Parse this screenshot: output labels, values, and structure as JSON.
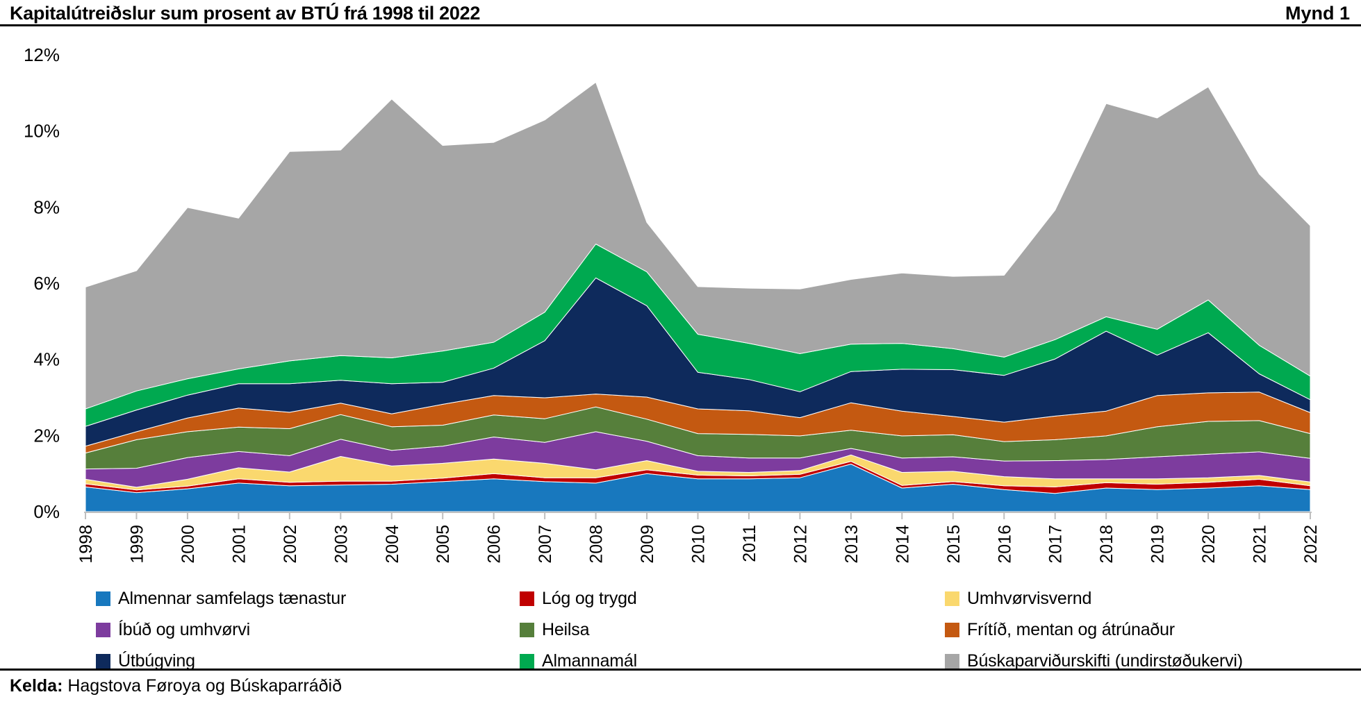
{
  "header": {
    "title": "Kapitalútreiðslur sum prosent av BTÚ frá 1998 til 2022",
    "figure_label": "Mynd 1"
  },
  "source": {
    "label": "Kelda:",
    "text": " Hagstova Føroya og Búskaparráðið"
  },
  "axis_colors": {
    "line": "#BFBFBF",
    "text": "#000000"
  },
  "chart_data": {
    "type": "area",
    "stacked": true,
    "title": "Kapitalútreiðslur sum prosent av BTÚ frá 1998 til 2022",
    "xlabel": "",
    "ylabel": "",
    "ylim": [
      0,
      12
    ],
    "yticks": [
      0,
      2,
      4,
      6,
      8,
      10,
      12
    ],
    "ytick_labels": [
      "0%",
      "2%",
      "4%",
      "6%",
      "8%",
      "10%",
      "12%"
    ],
    "grid": false,
    "legend_position": "bottom",
    "x": [
      1998,
      1999,
      2000,
      2001,
      2002,
      2003,
      2004,
      2005,
      2006,
      2007,
      2008,
      2009,
      2010,
      2011,
      2012,
      2013,
      2014,
      2015,
      2016,
      2017,
      2018,
      2019,
      2020,
      2021,
      2022
    ],
    "series": [
      {
        "id": "almennar-samfelags-taenastur",
        "name": "Almennar samfelags tænastur",
        "color": "#1878BE",
        "values": [
          0.65,
          0.5,
          0.6,
          0.75,
          0.68,
          0.7,
          0.72,
          0.79,
          0.86,
          0.79,
          0.75,
          1.0,
          0.86,
          0.86,
          0.89,
          1.25,
          0.62,
          0.72,
          0.58,
          0.48,
          0.62,
          0.58,
          0.62,
          0.68,
          0.58
        ]
      },
      {
        "id": "log-og-trygd",
        "name": "Lóg og trygd",
        "color": "#C00000",
        "values": [
          0.08,
          0.07,
          0.07,
          0.11,
          0.09,
          0.1,
          0.08,
          0.09,
          0.14,
          0.1,
          0.14,
          0.1,
          0.1,
          0.08,
          0.09,
          0.07,
          0.07,
          0.07,
          0.1,
          0.17,
          0.14,
          0.14,
          0.15,
          0.17,
          0.1
        ]
      },
      {
        "id": "umhvorvisvernd",
        "name": "Umhvørvisvernd",
        "color": "#FAD86E",
        "values": [
          0.12,
          0.07,
          0.18,
          0.29,
          0.27,
          0.65,
          0.4,
          0.39,
          0.38,
          0.38,
          0.21,
          0.24,
          0.1,
          0.09,
          0.1,
          0.17,
          0.34,
          0.27,
          0.24,
          0.21,
          0.1,
          0.14,
          0.12,
          0.1,
          0.1
        ]
      },
      {
        "id": "ibud-og-umhvorvi",
        "name": "Íbúð og umhvørvi",
        "color": "#7D3C9E",
        "values": [
          0.27,
          0.5,
          0.57,
          0.43,
          0.43,
          0.45,
          0.41,
          0.45,
          0.58,
          0.55,
          1.0,
          0.51,
          0.41,
          0.38,
          0.33,
          0.17,
          0.38,
          0.38,
          0.41,
          0.48,
          0.51,
          0.58,
          0.62,
          0.62,
          0.62
        ]
      },
      {
        "id": "heilsa",
        "name": "Heilsa",
        "color": "#567F3B",
        "values": [
          0.42,
          0.75,
          0.68,
          0.64,
          0.71,
          0.65,
          0.62,
          0.55,
          0.58,
          0.62,
          0.65,
          0.58,
          0.58,
          0.62,
          0.58,
          0.48,
          0.58,
          0.58,
          0.51,
          0.55,
          0.62,
          0.79,
          0.86,
          0.82,
          0.65
        ]
      },
      {
        "id": "fritid-mentan-og-atrunadur",
        "name": "Frítíð, mentan og átrúnaður",
        "color": "#C45911",
        "values": [
          0.18,
          0.21,
          0.36,
          0.5,
          0.43,
          0.3,
          0.34,
          0.55,
          0.51,
          0.55,
          0.34,
          0.58,
          0.65,
          0.62,
          0.48,
          0.72,
          0.65,
          0.48,
          0.51,
          0.62,
          0.65,
          0.82,
          0.75,
          0.75,
          0.55
        ]
      },
      {
        "id": "utbugving",
        "name": "Útbúgving",
        "color": "#0E2A5C",
        "values": [
          0.52,
          0.57,
          0.6,
          0.64,
          0.75,
          0.6,
          0.79,
          0.58,
          0.72,
          1.5,
          3.05,
          2.4,
          0.96,
          0.82,
          0.68,
          0.82,
          1.1,
          1.23,
          1.23,
          1.5,
          2.1,
          1.06,
          1.58,
          0.48,
          0.34
        ]
      },
      {
        "id": "almannamal",
        "name": "Almannamál",
        "color": "#00A950",
        "values": [
          0.46,
          0.5,
          0.43,
          0.39,
          0.6,
          0.65,
          0.68,
          0.82,
          0.68,
          0.75,
          0.89,
          0.89,
          1.0,
          0.95,
          1.0,
          0.72,
          0.68,
          0.55,
          0.48,
          0.51,
          0.38,
          0.68,
          0.86,
          0.75,
          0.62
        ]
      },
      {
        "id": "buskaparvidurskifti",
        "name": "Búskaparviðurskifti (undirstøðukervi)",
        "color": "#A6A6A6",
        "values": [
          3.2,
          3.16,
          4.5,
          3.96,
          5.5,
          5.4,
          6.8,
          5.4,
          5.25,
          5.05,
          4.25,
          1.3,
          1.25,
          1.45,
          1.7,
          1.7,
          1.85,
          1.9,
          2.15,
          3.4,
          5.6,
          5.55,
          5.6,
          4.5,
          3.95
        ]
      }
    ]
  }
}
